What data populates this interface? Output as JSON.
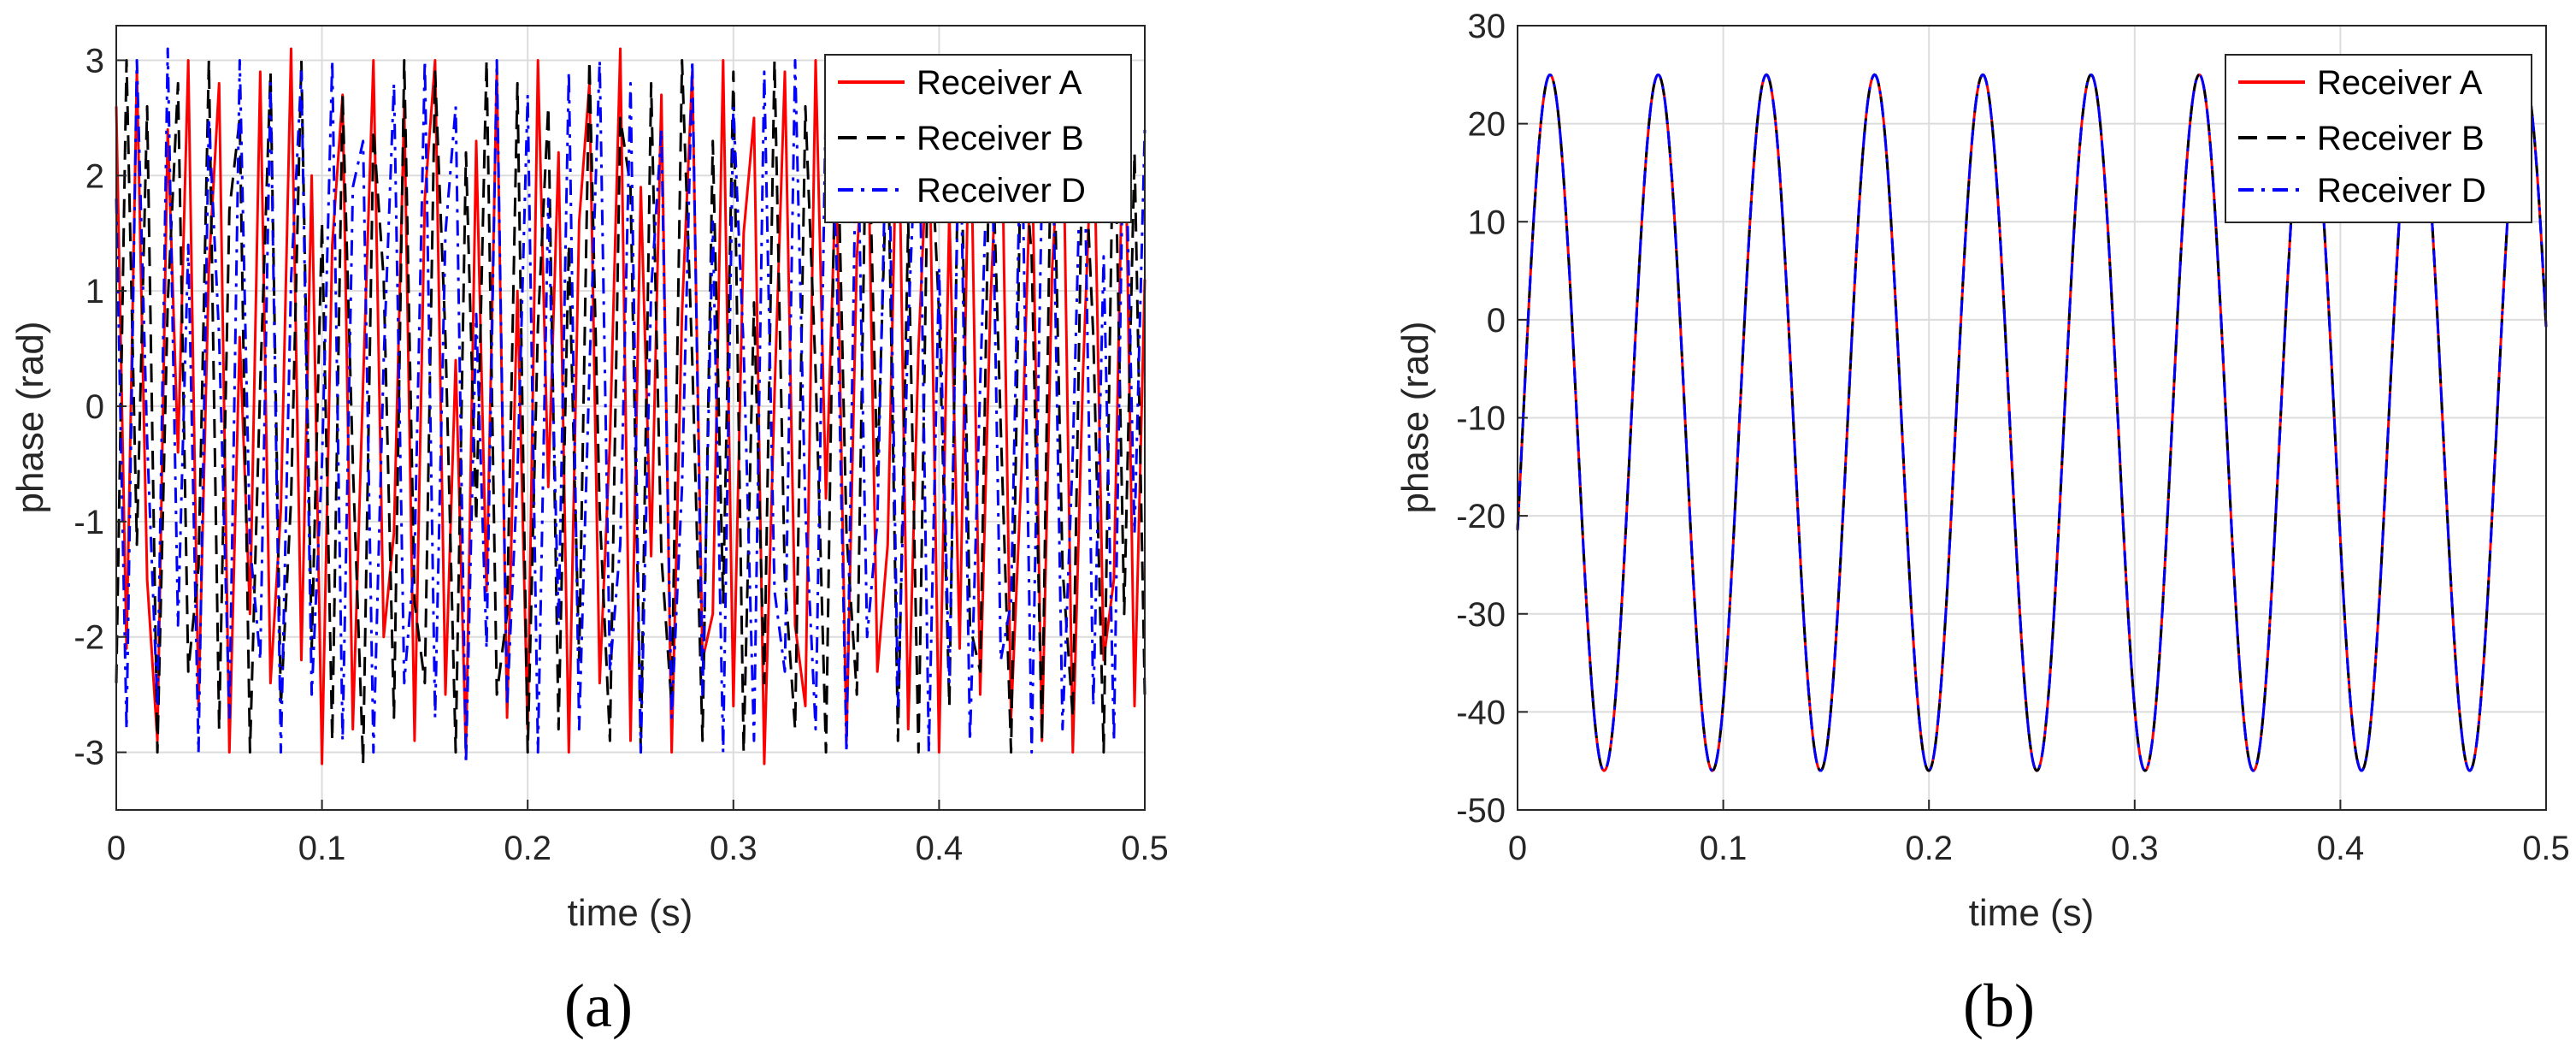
{
  "chart_data": [
    {
      "type": "line",
      "panel_label": "(a)",
      "xlabel": "time (s)",
      "ylabel": "phase (rad)",
      "xlim": [
        0,
        0.5
      ],
      "ylim": [
        -3.5,
        3.3
      ],
      "xticks": [
        0,
        0.1,
        0.2,
        0.3,
        0.4,
        0.5
      ],
      "xtick_labels": [
        "0",
        "0.1",
        "0.2",
        "0.3",
        "0.4",
        "0.5"
      ],
      "yticks": [
        -3,
        -2,
        -1,
        0,
        1,
        2,
        3
      ],
      "ytick_labels": [
        "-3",
        "-2",
        "-1",
        "0",
        "1",
        "2",
        "3"
      ],
      "grid": true,
      "legend_position": "top-right",
      "series": [
        {
          "name": "Receiver A",
          "color": "#ff0000",
          "style": "solid",
          "x": [
            0,
            0.005,
            0.01,
            0.015,
            0.02,
            0.025,
            0.03,
            0.035,
            0.04,
            0.045,
            0.05,
            0.055,
            0.06,
            0.065,
            0.07,
            0.075,
            0.08,
            0.085,
            0.09,
            0.095,
            0.1,
            0.105,
            0.11,
            0.115,
            0.12,
            0.125,
            0.13,
            0.135,
            0.14,
            0.145,
            0.15,
            0.155,
            0.16,
            0.165,
            0.17,
            0.175,
            0.18,
            0.185,
            0.19,
            0.195,
            0.2,
            0.205,
            0.21,
            0.215,
            0.22,
            0.225,
            0.23,
            0.235,
            0.24,
            0.245,
            0.25,
            0.255,
            0.26,
            0.265,
            0.27,
            0.275,
            0.28,
            0.285,
            0.29,
            0.295,
            0.3,
            0.305,
            0.31,
            0.315,
            0.32,
            0.325,
            0.33,
            0.335,
            0.34,
            0.345,
            0.35,
            0.355,
            0.36,
            0.365,
            0.37,
            0.375,
            0.38,
            0.385,
            0.39,
            0.395,
            0.4,
            0.405,
            0.41,
            0.415,
            0.42,
            0.425,
            0.43,
            0.435,
            0.44,
            0.445,
            0.45,
            0.455,
            0.46,
            0.465,
            0.47,
            0.475,
            0.48,
            0.485,
            0.49,
            0.495,
            0.5
          ],
          "y": [
            2.6,
            -2.1,
            2.9,
            -1.5,
            -2.9,
            2.4,
            -0.4,
            3.0,
            -2.6,
            1.2,
            2.8,
            -3.0,
            0.6,
            -1.8,
            2.9,
            -2.4,
            -0.9,
            3.1,
            -2.2,
            2.0,
            -3.1,
            1.4,
            2.7,
            -2.8,
            0.2,
            3.0,
            -2.0,
            -1.1,
            2.6,
            -2.9,
            1.8,
            3.0,
            -2.5,
            0.4,
            -3.0,
            2.3,
            -1.6,
            2.9,
            -2.7,
            1.0,
            -2.8,
            3.0,
            -0.7,
            2.2,
            -3.0,
            1.6,
            2.8,
            -2.4,
            -0.3,
            3.1,
            -2.9,
            1.9,
            -1.3,
            2.7,
            -3.0,
            0.8,
            2.9,
            -2.2,
            -1.8,
            3.0,
            -2.6,
            1.5,
            2.5,
            -3.1,
            0.1,
            2.9,
            -1.9,
            -2.6,
            3.0,
            -0.8,
            2.1,
            -2.9,
            1.3,
            2.8,
            -2.3,
            -1.2,
            3.0,
            -2.8,
            0.5,
            2.6,
            -3.0,
            1.7,
            -2.1,
            2.9,
            -2.5,
            0.9,
            3.0,
            -2.7,
            -0.6,
            2.4,
            -2.9,
            1.2,
            2.8,
            -3.0,
            0.3,
            2.7,
            -2.2,
            -1.5,
            3.0,
            -2.6,
            1.1
          ]
        },
        {
          "name": "Receiver B",
          "color": "#000000",
          "style": "dashed",
          "x": [
            0,
            0.005,
            0.01,
            0.015,
            0.02,
            0.025,
            0.03,
            0.035,
            0.04,
            0.045,
            0.05,
            0.055,
            0.06,
            0.065,
            0.07,
            0.075,
            0.08,
            0.085,
            0.09,
            0.095,
            0.1,
            0.105,
            0.11,
            0.115,
            0.12,
            0.125,
            0.13,
            0.135,
            0.14,
            0.145,
            0.15,
            0.155,
            0.16,
            0.165,
            0.17,
            0.175,
            0.18,
            0.185,
            0.19,
            0.195,
            0.2,
            0.205,
            0.21,
            0.215,
            0.22,
            0.225,
            0.23,
            0.235,
            0.24,
            0.245,
            0.25,
            0.255,
            0.26,
            0.265,
            0.27,
            0.275,
            0.28,
            0.285,
            0.29,
            0.295,
            0.3,
            0.305,
            0.31,
            0.315,
            0.32,
            0.325,
            0.33,
            0.335,
            0.34,
            0.345,
            0.35,
            0.355,
            0.36,
            0.365,
            0.37,
            0.375,
            0.38,
            0.385,
            0.39,
            0.395,
            0.4,
            0.405,
            0.41,
            0.415,
            0.42,
            0.425,
            0.43,
            0.435,
            0.44,
            0.445,
            0.45,
            0.455,
            0.46,
            0.465,
            0.47,
            0.475,
            0.48,
            0.485,
            0.49,
            0.495,
            0.5
          ],
          "y": [
            -2.4,
            3.0,
            -1.2,
            2.6,
            -3.0,
            0.9,
            2.8,
            -2.3,
            -1.4,
            3.0,
            -2.8,
            1.7,
            2.5,
            -3.0,
            0.2,
            2.9,
            -2.6,
            -0.8,
            3.0,
            -2.1,
            1.6,
            -2.9,
            2.7,
            -0.5,
            -3.1,
            2.4,
            1.1,
            -2.7,
            3.0,
            -1.7,
            -2.4,
            2.9,
            0.6,
            -3.0,
            2.2,
            -1.0,
            3.0,
            -2.5,
            -1.8,
            2.8,
            -3.0,
            0.7,
            2.6,
            -2.8,
            1.4,
            -2.2,
            3.0,
            -0.9,
            -2.9,
            2.5,
            1.9,
            -3.0,
            2.8,
            -1.3,
            -2.6,
            3.0,
            0.4,
            -2.9,
            2.3,
            -1.7,
            2.9,
            -3.0,
            0.9,
            -2.4,
            3.0,
            -1.5,
            -2.8,
            2.6,
            0.3,
            -3.0,
            2.9,
            -1.1,
            -2.5,
            3.0,
            -0.6,
            2.4,
            -2.9,
            1.6,
            -3.0,
            2.7,
            0.8,
            -2.6,
            3.0,
            -1.9,
            -2.3,
            2.8,
            -0.2,
            -3.0,
            2.5,
            1.3,
            -2.9,
            3.0,
            -1.4,
            -2.7,
            2.6,
            0.6,
            -3.0,
            2.9,
            -1.8,
            2.2,
            -2.5
          ]
        },
        {
          "name": "Receiver D",
          "color": "#0000ff",
          "style": "dashdot",
          "x": [
            0,
            0.005,
            0.01,
            0.015,
            0.02,
            0.025,
            0.03,
            0.035,
            0.04,
            0.045,
            0.05,
            0.055,
            0.06,
            0.065,
            0.07,
            0.075,
            0.08,
            0.085,
            0.09,
            0.095,
            0.1,
            0.105,
            0.11,
            0.115,
            0.12,
            0.125,
            0.13,
            0.135,
            0.14,
            0.145,
            0.15,
            0.155,
            0.16,
            0.165,
            0.17,
            0.175,
            0.18,
            0.185,
            0.19,
            0.195,
            0.2,
            0.205,
            0.21,
            0.215,
            0.22,
            0.225,
            0.23,
            0.235,
            0.24,
            0.245,
            0.25,
            0.255,
            0.26,
            0.265,
            0.27,
            0.275,
            0.28,
            0.285,
            0.29,
            0.295,
            0.3,
            0.305,
            0.31,
            0.315,
            0.32,
            0.325,
            0.33,
            0.335,
            0.34,
            0.345,
            0.35,
            0.355,
            0.36,
            0.365,
            0.37,
            0.375,
            0.38,
            0.385,
            0.39,
            0.395,
            0.4,
            0.405,
            0.41,
            0.415,
            0.42,
            0.425,
            0.43,
            0.435,
            0.44,
            0.445,
            0.45,
            0.455,
            0.46,
            0.465,
            0.47,
            0.475,
            0.48,
            0.485,
            0.49,
            0.495,
            0.5
          ],
          "y": [
            1.8,
            -2.8,
            3.0,
            -0.3,
            -2.6,
            3.1,
            -1.9,
            1.4,
            -3.0,
            2.5,
            0.6,
            -2.7,
            3.0,
            -1.2,
            -2.2,
            2.8,
            -3.0,
            1.1,
            2.9,
            -2.5,
            -0.5,
            3.0,
            -2.9,
            1.9,
            2.3,
            -3.0,
            0.4,
            2.8,
            -2.4,
            -1.3,
            3.0,
            -2.7,
            1.5,
            2.6,
            -3.1,
            0.8,
            -2.1,
            3.0,
            -2.6,
            -0.6,
            2.7,
            -3.0,
            1.8,
            -1.9,
            2.9,
            -2.8,
            0.3,
            3.0,
            -2.3,
            -1.2,
            2.8,
            -3.0,
            1.0,
            2.4,
            -2.7,
            -0.7,
            3.0,
            -2.5,
            1.6,
            -3.0,
            2.6,
            0.5,
            -2.9,
            2.9,
            -1.6,
            -2.3,
            3.0,
            -0.9,
            -2.8,
            2.7,
            1.4,
            -3.0,
            2.8,
            -2.0,
            -1.0,
            3.0,
            -2.6,
            0.7,
            2.9,
            -3.0,
            1.2,
            -2.4,
            2.8,
            -2.9,
            0.2,
            3.0,
            -2.2,
            -1.7,
            2.7,
            -3.0,
            1.9,
            2.5,
            -2.8,
            -0.4,
            3.0,
            -2.6,
            1.3,
            -2.9,
            2.9,
            -1.1,
            2.4
          ]
        }
      ]
    },
    {
      "type": "line",
      "panel_label": "(b)",
      "xlabel": "time (s)",
      "ylabel": "phase (rad)",
      "xlim": [
        0,
        0.5
      ],
      "ylim": [
        -50,
        30
      ],
      "xticks": [
        0,
        0.1,
        0.2,
        0.3,
        0.4,
        0.5
      ],
      "xtick_labels": [
        "0",
        "0.1",
        "0.2",
        "0.3",
        "0.4",
        "0.5"
      ],
      "yticks": [
        -50,
        -40,
        -30,
        -20,
        -10,
        0,
        10,
        20,
        30
      ],
      "ytick_labels": [
        "-50",
        "-40",
        "-30",
        "-20",
        "-10",
        "0",
        "10",
        "20",
        "30"
      ],
      "grid": true,
      "legend_position": "top-right",
      "waveform": {
        "offset": -10.5,
        "amplitude": 35.5,
        "period": 0.0526,
        "phase_at_zero": 0.3
      },
      "series": [
        {
          "name": "Receiver A",
          "color": "#ff0000",
          "style": "solid"
        },
        {
          "name": "Receiver B",
          "color": "#000000",
          "style": "dashed"
        },
        {
          "name": "Receiver D",
          "color": "#0000ff",
          "style": "dashdot"
        }
      ]
    }
  ]
}
